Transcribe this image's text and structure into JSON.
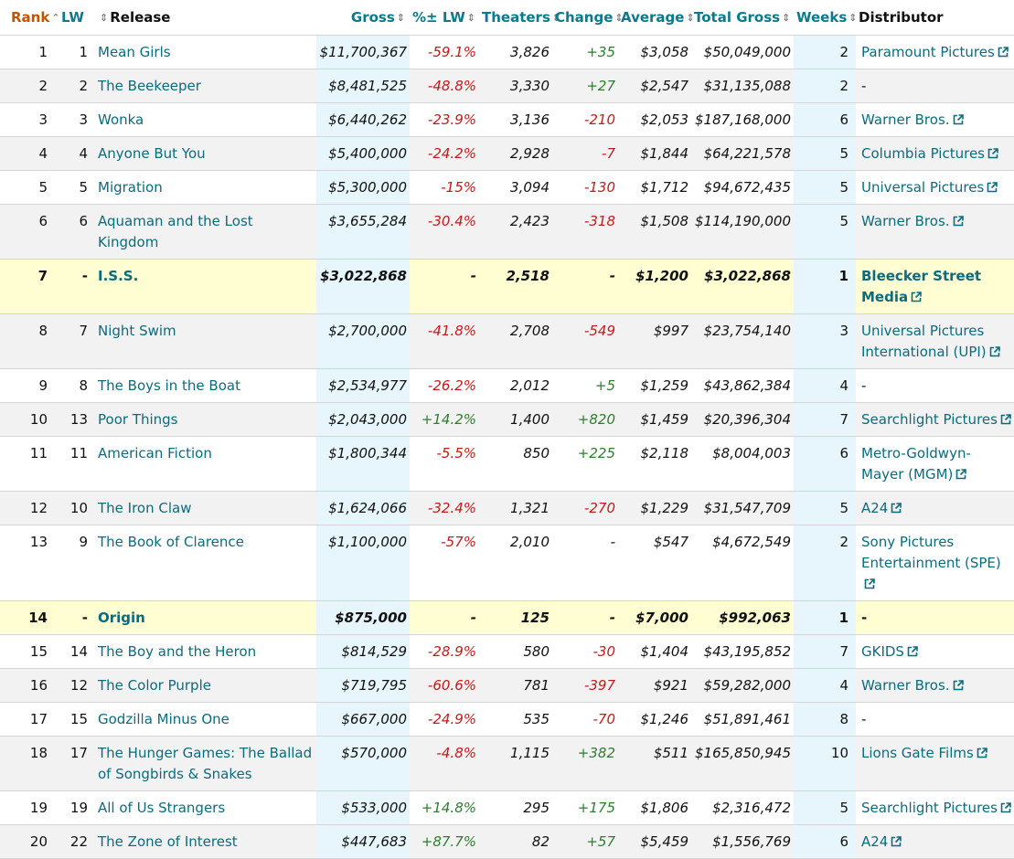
{
  "columns": {
    "rank": "Rank",
    "lw": "LW",
    "release": "Release",
    "gross": "Gross",
    "pct_lw": "%± LW",
    "theaters": "Theaters",
    "change": "Change",
    "average": "Average",
    "total_gross": "Total Gross",
    "weeks": "Weeks",
    "distributor": "Distributor"
  },
  "icons": {
    "sort_up": "sort-ascending-icon",
    "sort_both": "sort-icon",
    "external": "external-link-icon"
  },
  "colors": {
    "link": "#0a6c7e",
    "negative": "#c21b1b",
    "positive": "#2e7d2e",
    "highlight_column": "#e6f6fc",
    "new_release_row": "#fffdd2",
    "rank_header": "#c45500"
  },
  "rows": [
    {
      "rank": "1",
      "lw": "1",
      "release": "Mean Girls",
      "gross": "$11,700,367",
      "pct_lw": "-59.1%",
      "theaters": "3,826",
      "change": "+35",
      "average": "$3,058",
      "total_gross": "$50,049,000",
      "weeks": "2",
      "distributor": "Paramount Pictures",
      "dist_link": true
    },
    {
      "rank": "2",
      "lw": "2",
      "release": "The Beekeeper",
      "gross": "$8,481,525",
      "pct_lw": "-48.8%",
      "theaters": "3,330",
      "change": "+27",
      "average": "$2,547",
      "total_gross": "$31,135,088",
      "weeks": "2",
      "distributor": "-",
      "dist_link": false
    },
    {
      "rank": "3",
      "lw": "3",
      "release": "Wonka",
      "gross": "$6,440,262",
      "pct_lw": "-23.9%",
      "theaters": "3,136",
      "change": "-210",
      "average": "$2,053",
      "total_gross": "$187,168,000",
      "weeks": "6",
      "distributor": "Warner Bros.",
      "dist_link": true
    },
    {
      "rank": "4",
      "lw": "4",
      "release": "Anyone But You",
      "gross": "$5,400,000",
      "pct_lw": "-24.2%",
      "theaters": "2,928",
      "change": "-7",
      "average": "$1,844",
      "total_gross": "$64,221,578",
      "weeks": "5",
      "distributor": "Columbia Pictures",
      "dist_link": true
    },
    {
      "rank": "5",
      "lw": "5",
      "release": "Migration",
      "gross": "$5,300,000",
      "pct_lw": "-15%",
      "theaters": "3,094",
      "change": "-130",
      "average": "$1,712",
      "total_gross": "$94,672,435",
      "weeks": "5",
      "distributor": "Universal Pictures",
      "dist_link": true
    },
    {
      "rank": "6",
      "lw": "6",
      "release": "Aquaman and the Lost Kingdom",
      "gross": "$3,655,284",
      "pct_lw": "-30.4%",
      "theaters": "2,423",
      "change": "-318",
      "average": "$1,508",
      "total_gross": "$114,190,000",
      "weeks": "5",
      "distributor": "Warner Bros.",
      "dist_link": true
    },
    {
      "rank": "7",
      "lw": "-",
      "release": "I.S.S.",
      "gross": "$3,022,868",
      "pct_lw": "-",
      "theaters": "2,518",
      "change": "-",
      "average": "$1,200",
      "total_gross": "$3,022,868",
      "weeks": "1",
      "distributor": "Bleecker Street Media",
      "dist_link": true,
      "new": true
    },
    {
      "rank": "8",
      "lw": "7",
      "release": "Night Swim",
      "gross": "$2,700,000",
      "pct_lw": "-41.8%",
      "theaters": "2,708",
      "change": "-549",
      "average": "$997",
      "total_gross": "$23,754,140",
      "weeks": "3",
      "distributor": "Universal Pictures International (UPI)",
      "dist_link": true
    },
    {
      "rank": "9",
      "lw": "8",
      "release": "The Boys in the Boat",
      "gross": "$2,534,977",
      "pct_lw": "-26.2%",
      "theaters": "2,012",
      "change": "+5",
      "average": "$1,259",
      "total_gross": "$43,862,384",
      "weeks": "4",
      "distributor": "-",
      "dist_link": false
    },
    {
      "rank": "10",
      "lw": "13",
      "release": "Poor Things",
      "gross": "$2,043,000",
      "pct_lw": "+14.2%",
      "theaters": "1,400",
      "change": "+820",
      "average": "$1,459",
      "total_gross": "$20,396,304",
      "weeks": "7",
      "distributor": "Searchlight Pictures",
      "dist_link": true
    },
    {
      "rank": "11",
      "lw": "11",
      "release": "American Fiction",
      "gross": "$1,800,344",
      "pct_lw": "-5.5%",
      "theaters": "850",
      "change": "+225",
      "average": "$2,118",
      "total_gross": "$8,004,003",
      "weeks": "6",
      "distributor": "Metro-Goldwyn-Mayer (MGM)",
      "dist_link": true
    },
    {
      "rank": "12",
      "lw": "10",
      "release": "The Iron Claw",
      "gross": "$1,624,066",
      "pct_lw": "-32.4%",
      "theaters": "1,321",
      "change": "-270",
      "average": "$1,229",
      "total_gross": "$31,547,709",
      "weeks": "5",
      "distributor": "A24",
      "dist_link": true
    },
    {
      "rank": "13",
      "lw": "9",
      "release": "The Book of Clarence",
      "gross": "$1,100,000",
      "pct_lw": "-57%",
      "theaters": "2,010",
      "change": "-",
      "average": "$547",
      "total_gross": "$4,672,549",
      "weeks": "2",
      "distributor": "Sony Pictures Entertainment (SPE)",
      "dist_link": true
    },
    {
      "rank": "14",
      "lw": "-",
      "release": "Origin",
      "gross": "$875,000",
      "pct_lw": "-",
      "theaters": "125",
      "change": "-",
      "average": "$7,000",
      "total_gross": "$992,063",
      "weeks": "1",
      "distributor": "-",
      "dist_link": false,
      "new": true
    },
    {
      "rank": "15",
      "lw": "14",
      "release": "The Boy and the Heron",
      "gross": "$814,529",
      "pct_lw": "-28.9%",
      "theaters": "580",
      "change": "-30",
      "average": "$1,404",
      "total_gross": "$43,195,852",
      "weeks": "7",
      "distributor": "GKIDS",
      "dist_link": true
    },
    {
      "rank": "16",
      "lw": "12",
      "release": "The Color Purple",
      "gross": "$719,795",
      "pct_lw": "-60.6%",
      "theaters": "781",
      "change": "-397",
      "average": "$921",
      "total_gross": "$59,282,000",
      "weeks": "4",
      "distributor": "Warner Bros.",
      "dist_link": true
    },
    {
      "rank": "17",
      "lw": "15",
      "release": "Godzilla Minus One",
      "gross": "$667,000",
      "pct_lw": "-24.9%",
      "theaters": "535",
      "change": "-70",
      "average": "$1,246",
      "total_gross": "$51,891,461",
      "weeks": "8",
      "distributor": "-",
      "dist_link": false
    },
    {
      "rank": "18",
      "lw": "17",
      "release": "The Hunger Games: The Ballad of Songbirds & Snakes",
      "gross": "$570,000",
      "pct_lw": "-4.8%",
      "theaters": "1,115",
      "change": "+382",
      "average": "$511",
      "total_gross": "$165,850,945",
      "weeks": "10",
      "distributor": "Lions Gate Films",
      "dist_link": true
    },
    {
      "rank": "19",
      "lw": "19",
      "release": "All of Us Strangers",
      "gross": "$533,000",
      "pct_lw": "+14.8%",
      "theaters": "295",
      "change": "+175",
      "average": "$1,806",
      "total_gross": "$2,316,472",
      "weeks": "5",
      "distributor": "Searchlight Pictures",
      "dist_link": true
    },
    {
      "rank": "20",
      "lw": "22",
      "release": "The Zone of Interest",
      "gross": "$447,683",
      "pct_lw": "+87.7%",
      "theaters": "82",
      "change": "+57",
      "average": "$5,459",
      "total_gross": "$1,556,769",
      "weeks": "6",
      "distributor": "A24",
      "dist_link": true
    }
  ]
}
